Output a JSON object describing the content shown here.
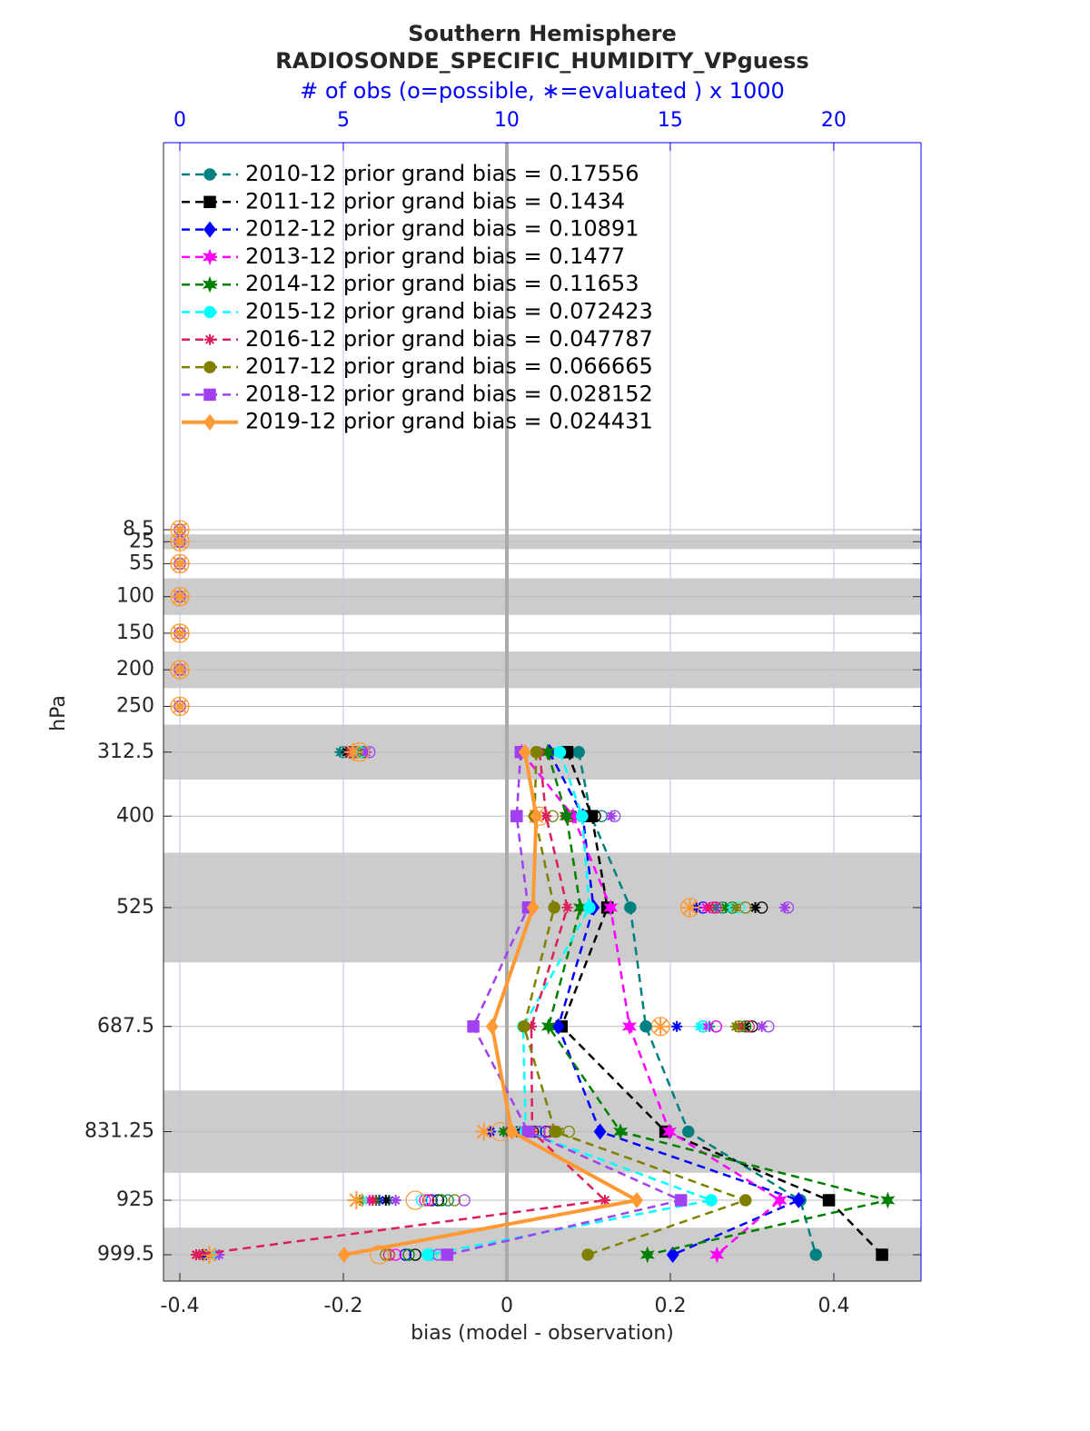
{
  "chart_data": {
    "type": "profile",
    "title": [
      "Southern Hemisphere",
      "RADIOSONDE_SPECIFIC_HUMIDITY_VPguess"
    ],
    "x2_label": "# of obs (o=possible, ∗=evaluated ) x 1000",
    "x_label": "bias (model - observation)",
    "y_label": "hPa",
    "xlim": [
      -0.42,
      0.5067
    ],
    "xticks": [
      -0.4,
      -0.2,
      0,
      0.2,
      0.4
    ],
    "x2lim": [
      -0.5,
      22.67
    ],
    "x2ticks": [
      0,
      5,
      10,
      15,
      20
    ],
    "ylim": [
      -520.5,
      1035.5
    ],
    "y_reversed": true,
    "yticks": [
      8.5,
      25,
      55,
      100,
      150,
      200,
      250,
      312.5,
      400,
      525,
      687.5,
      831.25,
      925,
      999.5
    ],
    "y": [
      8.5,
      25,
      55,
      100,
      150,
      200,
      250,
      312.5,
      400,
      525,
      687.5,
      831.25,
      925,
      999.5
    ],
    "bands": [
      [
        15,
        35
      ],
      [
        75,
        125
      ],
      [
        175,
        225
      ],
      [
        275,
        350
      ],
      [
        450,
        600
      ],
      [
        775,
        887.5
      ],
      [
        962.5,
        1035.5
      ]
    ],
    "grid": true,
    "legend": "upper left",
    "series": [
      {
        "name": "2010-12 prior grand bias = 0.17556",
        "color": "#008080",
        "marker": "circle",
        "linestyle": "dashed",
        "values": [
          null,
          null,
          null,
          null,
          null,
          null,
          null,
          0.088,
          0.103,
          0.151,
          0.17,
          0.222,
          0.359,
          0.378
        ],
        "possible": [
          0,
          0,
          0,
          0,
          0,
          0,
          0,
          5.0,
          12.9,
          16.6,
          16.4,
          10.9,
          8.2,
          7.6
        ],
        "evaluated": [
          0,
          0,
          0,
          0,
          0,
          0,
          0,
          4.9,
          12.2,
          16.4,
          16.2,
          10.4,
          6.4,
          0.8
        ]
      },
      {
        "name": "2011-12 prior grand bias = 0.1434",
        "color": "#000000",
        "marker": "square",
        "linestyle": "dashed",
        "values": [
          null,
          null,
          null,
          null,
          null,
          null,
          null,
          0.074,
          0.104,
          0.123,
          0.067,
          0.194,
          0.394,
          0.459
        ],
        "possible": [
          0,
          0,
          0,
          0,
          0,
          0,
          0,
          5.2,
          12.7,
          17.8,
          17.5,
          10.8,
          7.9,
          7.2
        ],
        "evaluated": [
          0,
          0,
          0,
          0,
          0,
          0,
          0,
          5.1,
          12.6,
          17.6,
          17.3,
          10.3,
          6.3,
          0.7
        ]
      },
      {
        "name": "2012-12 prior grand bias = 0.10891",
        "color": "#0000ff",
        "marker": "diamond",
        "linestyle": "dashed",
        "values": [
          null,
          null,
          null,
          null,
          null,
          null,
          null,
          0.052,
          0.093,
          0.106,
          0.063,
          0.114,
          0.357,
          0.203
        ],
        "possible": [
          0,
          0,
          0,
          0,
          0,
          0,
          0,
          5.3,
          12.4,
          16.0,
          16.0,
          11.2,
          7.7,
          6.9
        ],
        "evaluated": [
          0,
          0,
          0,
          0,
          0,
          0,
          0,
          5.2,
          12.1,
          15.8,
          15.2,
          9.5,
          6.1,
          0.8
        ]
      },
      {
        "name": "2013-12 prior grand bias = 0.1477",
        "color": "#ff00ff",
        "marker": "star",
        "linestyle": "dashed",
        "values": [
          null,
          null,
          null,
          null,
          null,
          null,
          null,
          0.018,
          0.081,
          0.127,
          0.15,
          0.199,
          0.334,
          0.257
        ],
        "possible": [
          0,
          0,
          0,
          0,
          0,
          0,
          0,
          5.4,
          12.3,
          16.3,
          16.4,
          11.0,
          7.5,
          6.6
        ],
        "evaluated": [
          0,
          0,
          0,
          0,
          0,
          0,
          0,
          5.3,
          12.2,
          16.1,
          16.1,
          10.0,
          5.8,
          0.6
        ]
      },
      {
        "name": "2014-12 prior grand bias = 0.11653",
        "color": "#008000",
        "marker": "star",
        "linestyle": "dashed",
        "values": [
          null,
          null,
          null,
          null,
          null,
          null,
          null,
          0.05,
          0.073,
          0.09,
          0.051,
          0.139,
          0.466,
          0.172
        ],
        "possible": [
          0,
          0,
          0,
          0,
          0,
          0,
          0,
          5.6,
          12.0,
          16.9,
          17.3,
          11.5,
          8.0,
          7.0
        ],
        "evaluated": [
          0,
          0,
          0,
          0,
          0,
          0,
          0,
          5.5,
          11.8,
          16.7,
          17.2,
          9.9,
          6.0,
          0.9
        ]
      },
      {
        "name": "2015-12 prior grand bias = 0.072423",
        "color": "#00ffff",
        "marker": "circle",
        "linestyle": "dashed",
        "values": [
          null,
          null,
          null,
          null,
          null,
          null,
          null,
          0.065,
          0.092,
          0.101,
          0.02,
          0.023,
          0.25,
          -0.097
        ],
        "possible": [
          0,
          0,
          0,
          0,
          0,
          0,
          0,
          5.5,
          12.5,
          17.1,
          16.0,
          10.6,
          7.4,
          7.7
        ],
        "evaluated": [
          0,
          0,
          0,
          0,
          0,
          0,
          0,
          5.4,
          12.3,
          16.9,
          15.9,
          10.2,
          5.6,
          1.1
        ]
      },
      {
        "name": "2016-12 prior grand bias = 0.047787",
        "color": "#dc1e5a",
        "marker": "asterisk",
        "linestyle": "dashed",
        "values": [
          null,
          null,
          null,
          null,
          null,
          null,
          null,
          0.04,
          0.048,
          0.074,
          0.03,
          0.031,
          0.12,
          -0.38
        ],
        "possible": [
          0,
          0,
          0,
          0,
          0,
          0,
          0,
          5.3,
          11.9,
          16.4,
          17.4,
          11.3,
          7.6,
          6.4
        ],
        "evaluated": [
          0,
          0,
          0,
          0,
          0,
          0,
          0,
          5.2,
          11.8,
          16.2,
          17.1,
          10.7,
          5.9,
          0.6
        ]
      },
      {
        "name": "2017-12 prior grand bias = 0.066665",
        "color": "#808000",
        "marker": "circle",
        "linestyle": "dashed",
        "values": [
          null,
          null,
          null,
          null,
          null,
          null,
          null,
          0.036,
          0.034,
          0.058,
          0.021,
          0.059,
          0.292,
          0.099
        ],
        "possible": [
          0,
          0,
          0,
          0,
          0,
          0,
          0,
          5.4,
          11.4,
          17.3,
          17.1,
          11.9,
          8.4,
          6.3
        ],
        "evaluated": [
          0,
          0,
          0,
          0,
          0,
          0,
          0,
          5.3,
          11.2,
          17.0,
          17.0,
          11.6,
          5.5,
          0.5
        ]
      },
      {
        "name": "2018-12 prior grand bias = 0.028152",
        "color": "#a040f0",
        "marker": "square",
        "linestyle": "dashed",
        "values": [
          null,
          null,
          null,
          null,
          null,
          null,
          null,
          0.017,
          0.012,
          0.026,
          -0.041,
          0.026,
          0.213,
          -0.073
        ],
        "possible": [
          0,
          0,
          0,
          0,
          0,
          0,
          0,
          5.8,
          13.3,
          18.6,
          18.0,
          11.0,
          8.7,
          7.9
        ],
        "evaluated": [
          0,
          0,
          0,
          0,
          0,
          0,
          0,
          5.7,
          13.2,
          18.5,
          17.8,
          10.5,
          6.6,
          1.2
        ]
      },
      {
        "name": "2019-12 prior grand bias = 0.024431",
        "color": "#ff9933",
        "marker": "diamond",
        "linestyle": "solid",
        "values": [
          null,
          null,
          null,
          null,
          null,
          null,
          null,
          0.022,
          0.036,
          0.032,
          -0.018,
          0.006,
          0.159,
          -0.199
        ],
        "possible": [
          0,
          0,
          0,
          0,
          0,
          0,
          0,
          5.5,
          11.0,
          15.6,
          14.7,
          9.8,
          7.2,
          6.1
        ],
        "evaluated": [
          0,
          0,
          0,
          0,
          0,
          0,
          0,
          5.3,
          10.9,
          15.6,
          14.7,
          9.3,
          5.4,
          0.9
        ]
      }
    ]
  }
}
